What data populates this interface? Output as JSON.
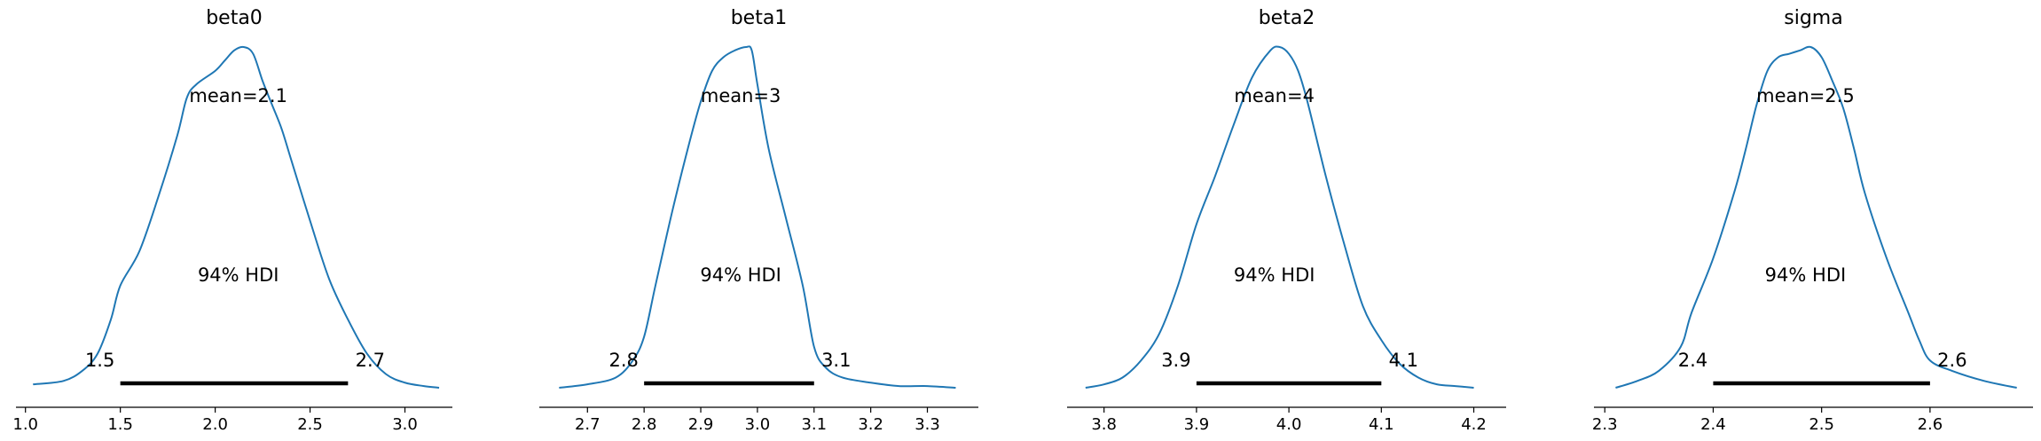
{
  "chart_data": [
    {
      "type": "area",
      "title": "beta0",
      "mean_label": "mean=2.1",
      "hdi_label": "94% HDI",
      "hdi": [
        1.5,
        2.7
      ],
      "hdi_labels": [
        "1.5",
        "2.7"
      ],
      "xlim": [
        0.95,
        3.25
      ],
      "ticks": [
        1.0,
        1.5,
        2.0,
        2.5,
        3.0
      ],
      "tick_labels": [
        "1.0",
        "1.5",
        "2.0",
        "2.5",
        "3.0"
      ],
      "density": {
        "x": [
          1.04,
          1.2,
          1.3,
          1.38,
          1.45,
          1.5,
          1.6,
          1.7,
          1.8,
          1.85,
          1.9,
          2.0,
          2.05,
          2.1,
          2.15,
          2.2,
          2.25,
          2.3,
          2.35,
          2.4,
          2.5,
          2.6,
          2.7,
          2.8,
          2.9,
          3.0,
          3.1,
          3.18
        ],
        "y": [
          0.01,
          0.02,
          0.05,
          0.1,
          0.2,
          0.3,
          0.4,
          0.56,
          0.74,
          0.85,
          0.89,
          0.93,
          0.96,
          0.99,
          1.0,
          0.98,
          0.9,
          0.83,
          0.76,
          0.67,
          0.49,
          0.32,
          0.2,
          0.1,
          0.04,
          0.015,
          0.005,
          0.0
        ]
      }
    },
    {
      "type": "area",
      "title": "beta1",
      "mean_label": "mean=3",
      "hdi_label": "94% HDI",
      "hdi": [
        2.8,
        3.1
      ],
      "hdi_labels": [
        "2.8",
        "3.1"
      ],
      "xlim": [
        2.615,
        3.39
      ],
      "ticks": [
        2.7,
        2.8,
        2.9,
        3.0,
        3.1,
        3.2,
        3.3
      ],
      "tick_labels": [
        "2.7",
        "2.8",
        "2.9",
        "3.0",
        "3.1",
        "3.2",
        "3.3"
      ],
      "density": {
        "x": [
          2.65,
          2.7,
          2.75,
          2.78,
          2.8,
          2.82,
          2.85,
          2.88,
          2.9,
          2.92,
          2.94,
          2.96,
          2.98,
          2.99,
          3.0,
          3.02,
          3.05,
          3.08,
          3.1,
          3.12,
          3.15,
          3.2,
          3.25,
          3.3,
          3.35
        ],
        "y": [
          0.0,
          0.01,
          0.03,
          0.08,
          0.15,
          0.3,
          0.52,
          0.72,
          0.84,
          0.93,
          0.97,
          0.99,
          1.0,
          0.99,
          0.89,
          0.7,
          0.5,
          0.3,
          0.12,
          0.06,
          0.03,
          0.015,
          0.005,
          0.005,
          0.0
        ]
      }
    },
    {
      "type": "area",
      "title": "beta2",
      "mean_label": "mean=4",
      "hdi_label": "94% HDI",
      "hdi": [
        3.9,
        4.1
      ],
      "hdi_labels": [
        "3.9",
        "4.1"
      ],
      "xlim": [
        3.76,
        4.235
      ],
      "ticks": [
        3.8,
        3.9,
        4.0,
        4.1,
        4.2
      ],
      "tick_labels": [
        "3.8",
        "3.9",
        "4.0",
        "4.1",
        "4.2"
      ],
      "density": {
        "x": [
          3.78,
          3.8,
          3.82,
          3.84,
          3.86,
          3.88,
          3.9,
          3.92,
          3.94,
          3.96,
          3.98,
          3.99,
          4.0,
          4.01,
          4.02,
          4.04,
          4.06,
          4.08,
          4.1,
          4.12,
          4.14,
          4.16,
          4.18,
          4.2
        ],
        "y": [
          0.0,
          0.01,
          0.03,
          0.08,
          0.16,
          0.3,
          0.48,
          0.62,
          0.77,
          0.91,
          0.99,
          1.0,
          0.98,
          0.93,
          0.84,
          0.62,
          0.42,
          0.24,
          0.14,
          0.07,
          0.03,
          0.01,
          0.005,
          0.0
        ]
      }
    },
    {
      "type": "area",
      "title": "sigma",
      "mean_label": "mean=2.5",
      "hdi_label": "94% HDI",
      "hdi": [
        2.4,
        2.6
      ],
      "hdi_labels": [
        "2.4",
        "2.6"
      ],
      "xlim": [
        2.29,
        2.695
      ],
      "ticks": [
        2.3,
        2.4,
        2.5,
        2.6
      ],
      "tick_labels": [
        "2.3",
        "2.4",
        "2.5",
        "2.6"
      ],
      "density": {
        "x": [
          2.31,
          2.33,
          2.35,
          2.37,
          2.38,
          2.4,
          2.42,
          2.43,
          2.44,
          2.45,
          2.46,
          2.47,
          2.48,
          2.49,
          2.5,
          2.51,
          2.52,
          2.53,
          2.54,
          2.56,
          2.58,
          2.59,
          2.6,
          2.62,
          2.65,
          2.68
        ],
        "y": [
          0.0,
          0.02,
          0.05,
          0.12,
          0.22,
          0.38,
          0.58,
          0.7,
          0.83,
          0.93,
          0.97,
          0.98,
          0.99,
          1.0,
          0.97,
          0.9,
          0.82,
          0.7,
          0.57,
          0.38,
          0.22,
          0.14,
          0.08,
          0.05,
          0.02,
          0.0
        ]
      }
    }
  ]
}
